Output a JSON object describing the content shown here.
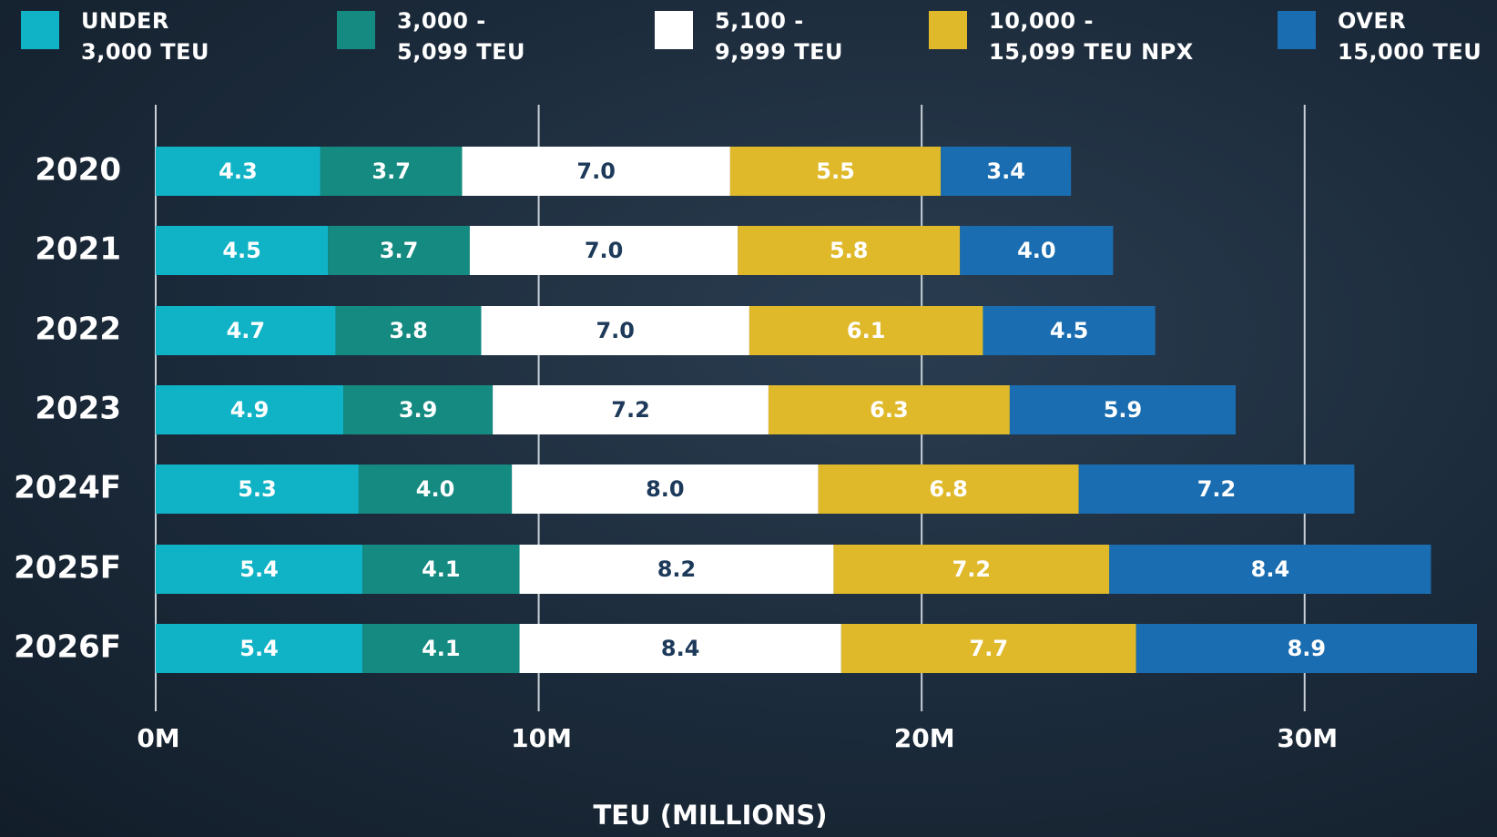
{
  "chart_data": {
    "type": "stacked-bar-horizontal",
    "x_label": "TEU (MILLIONS)",
    "categories": [
      "2020",
      "2021",
      "2022",
      "2023",
      "2024F",
      "2025F",
      "2026F"
    ],
    "series": [
      {
        "name": "UNDER\n3,000 TEU",
        "color": "#10b3c6",
        "values": [
          4.3,
          4.5,
          4.7,
          4.9,
          5.3,
          5.4,
          5.4
        ],
        "value_labels": [
          "4.3",
          "4.5",
          "4.7",
          "4.9",
          "5.3",
          "5.4",
          "5.4"
        ]
      },
      {
        "name": "3,000 -\n5,099 TEU",
        "color": "#148a80",
        "values": [
          3.7,
          3.7,
          3.8,
          3.9,
          4,
          4.1,
          4.1
        ],
        "value_labels": [
          "3.7",
          "3.7",
          "3.8",
          "3.9",
          "4.0",
          "4.1",
          "4.1"
        ]
      },
      {
        "name": "5,100 -\n9,999 TEU",
        "color": "#ffffff",
        "values": [
          7,
          7,
          7,
          7.2,
          8,
          8.2,
          8.4
        ],
        "value_labels": [
          "7.0",
          "7.0",
          "7.0",
          "7.2",
          "8.0",
          "8.2",
          "8.4"
        ]
      },
      {
        "name": "10,000 -\n15,099 TEU NPX",
        "color": "#dfb92a",
        "values": [
          5.5,
          5.8,
          6.1,
          6.3,
          6.8,
          7.2,
          7.7
        ],
        "value_labels": [
          "5.5",
          "5.8",
          "6.1",
          "6.3",
          "6.8",
          "7.2",
          "7.7"
        ]
      },
      {
        "name": "OVER\n15,000 TEU",
        "color": "#1a6db0",
        "values": [
          3.4,
          4,
          4.5,
          5.9,
          7.2,
          8.4,
          8.9
        ],
        "value_labels": [
          "3.4",
          "4.0",
          "4.5",
          "5.9",
          "7.2",
          "8.4",
          "8.9"
        ]
      }
    ],
    "xlim": [
      0,
      34.5
    ],
    "xticks": [
      {
        "value": 0,
        "label": "0M"
      },
      {
        "value": 10,
        "label": "10M"
      },
      {
        "value": 20,
        "label": "20M"
      },
      {
        "value": 30,
        "label": "30M"
      }
    ],
    "grid": true
  }
}
